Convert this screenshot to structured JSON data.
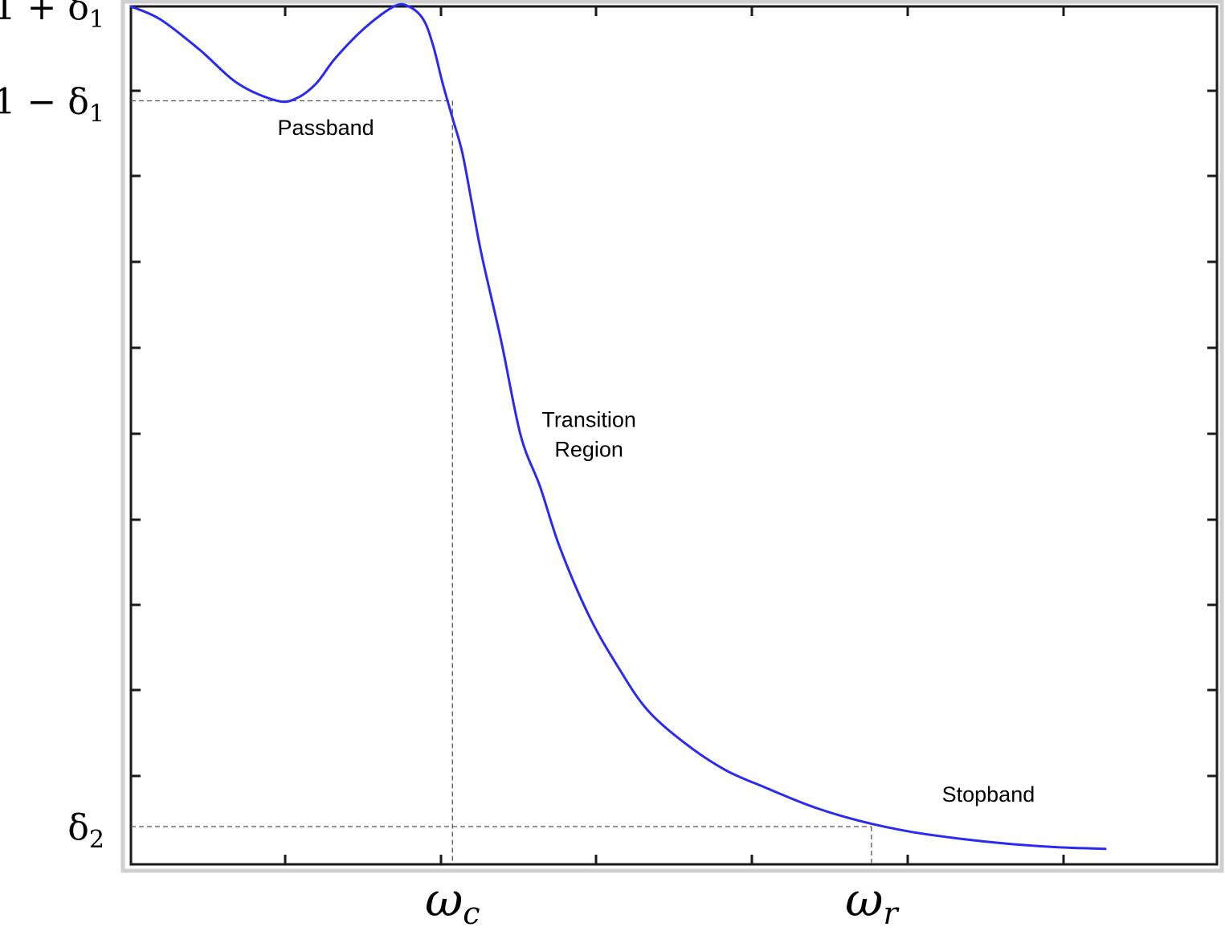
{
  "chart_data": {
    "type": "line",
    "title": "",
    "xlabel": "",
    "ylabel": "",
    "grid": false,
    "xlim": [
      0,
      1.0
    ],
    "ylim": [
      0,
      1.0
    ],
    "x_tick_labels": [
      {
        "value": 0.33,
        "symbol": "ω",
        "sub": "c"
      },
      {
        "value": 0.76,
        "symbol": "ω",
        "sub": "r"
      }
    ],
    "y_tick_labels": [
      {
        "value": 1.0,
        "text": "1 + δ",
        "sub": "1"
      },
      {
        "value": 0.89,
        "text": "1 − δ",
        "sub": "1"
      },
      {
        "value": 0.044,
        "text": "δ",
        "sub": "2"
      }
    ],
    "annotations": [
      {
        "text": "Passband",
        "x": 0.2,
        "y": 0.85
      },
      {
        "text": "Transition",
        "x": 0.47,
        "y": 0.51
      },
      {
        "text": "Region",
        "x": 0.47,
        "y": 0.475
      },
      {
        "text": "Stopband",
        "x": 0.88,
        "y": 0.073
      }
    ],
    "reference_lines": [
      {
        "from": [
          0,
          0.89
        ],
        "to": [
          0.33,
          0.89
        ]
      },
      {
        "from": [
          0.33,
          0.89
        ],
        "to": [
          0.33,
          0.0
        ]
      },
      {
        "from": [
          0,
          0.044
        ],
        "to": [
          0.76,
          0.044
        ]
      },
      {
        "from": [
          0.76,
          0.044
        ],
        "to": [
          0.76,
          0.0
        ]
      }
    ],
    "series": [
      {
        "color": "#2a2af0",
        "x": [
          0.0,
          0.03,
          0.07,
          0.11,
          0.15,
          0.17,
          0.19,
          0.21,
          0.24,
          0.27,
          0.285,
          0.3,
          0.31,
          0.32,
          0.33,
          0.34,
          0.35,
          0.36,
          0.38,
          0.4,
          0.42,
          0.44,
          0.47,
          0.5,
          0.53,
          0.57,
          0.61,
          0.65,
          0.7,
          0.75,
          0.8,
          0.85,
          0.9,
          0.95,
          1.0
        ],
        "y": [
          1.0,
          0.985,
          0.95,
          0.91,
          0.89,
          0.893,
          0.91,
          0.94,
          0.975,
          1.0,
          1.0,
          0.985,
          0.955,
          0.91,
          0.87,
          0.83,
          0.77,
          0.71,
          0.61,
          0.5,
          0.44,
          0.37,
          0.29,
          0.23,
          0.18,
          0.14,
          0.11,
          0.09,
          0.067,
          0.05,
          0.038,
          0.03,
          0.024,
          0.02,
          0.018
        ]
      }
    ]
  },
  "colors": {
    "axis": "#1a1a1a",
    "frame_shadow": "#cfcfcf",
    "curve": "#2a2af0",
    "reference": "#555555"
  }
}
